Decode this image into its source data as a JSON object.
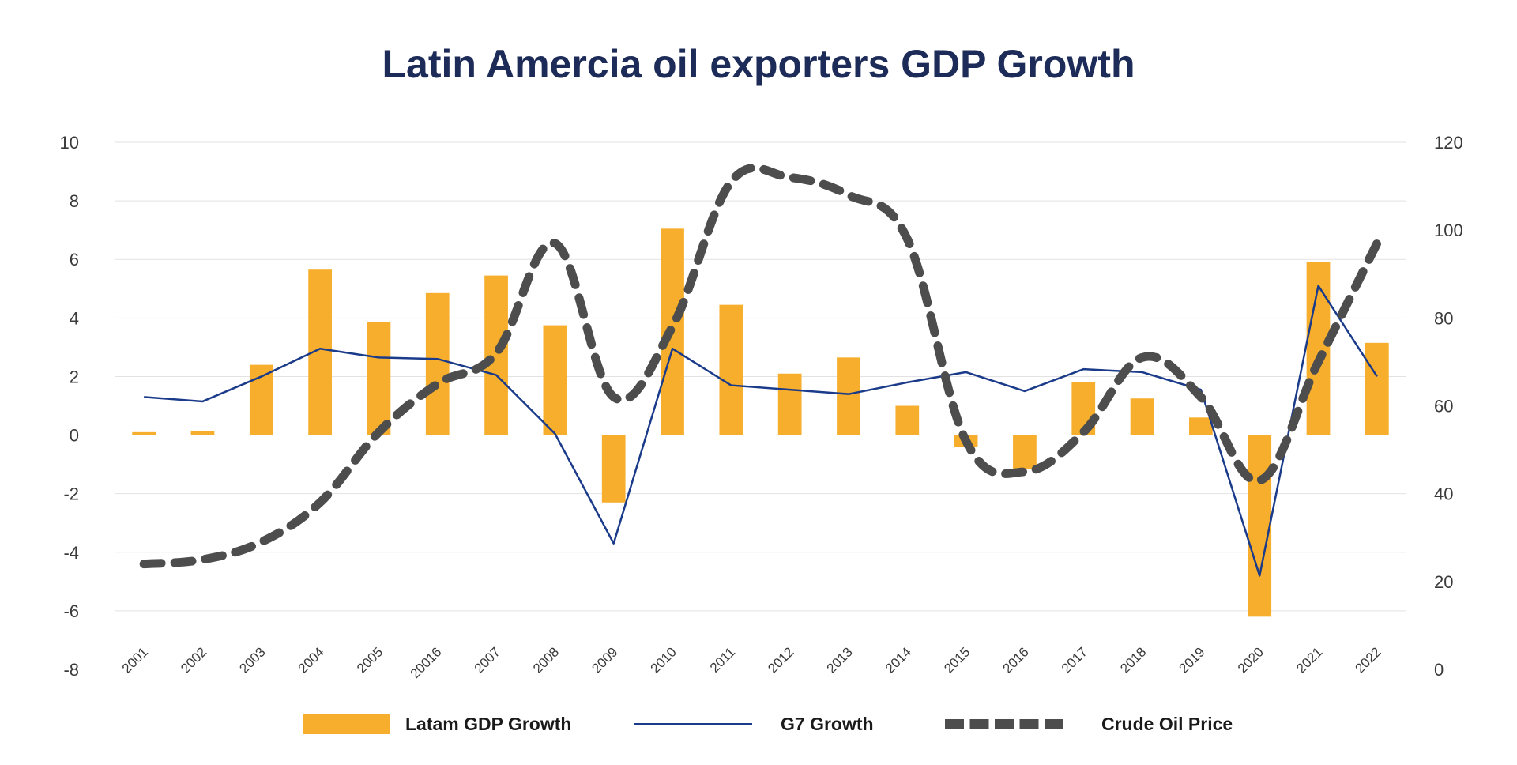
{
  "chart_data": {
    "type": "bar",
    "title": "Latin Amercia oil exporters GDP Growth",
    "categories": [
      "2001",
      "2002",
      "2003",
      "2004",
      "2005",
      "20016",
      "2007",
      "2008",
      "2009",
      "2010",
      "2011",
      "2012",
      "2013",
      "2014",
      "2015",
      "2016",
      "2017",
      "2018",
      "2019",
      "2020",
      "2021",
      "2022"
    ],
    "y_left": {
      "min": -8,
      "max": 10,
      "step": 2,
      "ticks": [
        "10",
        "8",
        "6",
        "4",
        "2",
        "0",
        "-2",
        "-4",
        "-6",
        "-8"
      ]
    },
    "y_right": {
      "min": 0,
      "max": 120,
      "step": 20,
      "ticks": [
        "120",
        "100",
        "80",
        "60",
        "40",
        "20",
        "0"
      ]
    },
    "grid": true,
    "legend_position": "bottom",
    "series": [
      {
        "name": "Latam GDP Growth",
        "kind": "bar",
        "axis": "left",
        "color": "#f7ae2c",
        "values": [
          0.1,
          0.15,
          2.4,
          5.65,
          3.85,
          4.85,
          5.45,
          3.75,
          -2.3,
          7.05,
          4.45,
          2.1,
          2.65,
          1.0,
          -0.4,
          -1.15,
          1.8,
          1.25,
          0.6,
          -6.2,
          5.9,
          3.15
        ]
      },
      {
        "name": "G7 Growth",
        "kind": "line",
        "axis": "left",
        "color": "#1a3a8a",
        "values": [
          1.3,
          1.15,
          2.0,
          2.95,
          2.65,
          2.6,
          2.05,
          0.05,
          -3.7,
          2.95,
          1.7,
          1.55,
          1.4,
          1.8,
          2.15,
          1.5,
          2.25,
          2.15,
          1.55,
          -4.8,
          5.1,
          2.0
        ]
      },
      {
        "name": "Crude Oil Price",
        "kind": "dashed-line",
        "axis": "right",
        "color": "#4d4d4d",
        "values": [
          24,
          25,
          29,
          38,
          54,
          65,
          72,
          97,
          62,
          78,
          111,
          112,
          108,
          98,
          52,
          45,
          54,
          71,
          62,
          43,
          70,
          97
        ]
      }
    ]
  },
  "legend": [
    {
      "label": "Latam GDP Growth"
    },
    {
      "label": "G7 Growth"
    },
    {
      "label": "Crude Oil Price"
    }
  ]
}
